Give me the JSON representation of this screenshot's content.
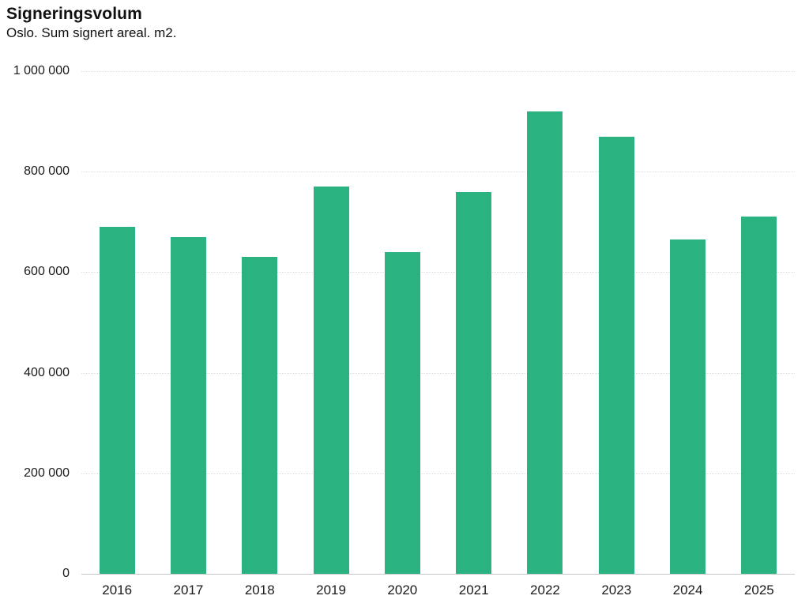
{
  "header": {
    "title": "Signeringsvolum",
    "subtitle": "Oslo. Sum signert areal. m2."
  },
  "chart_data": {
    "type": "bar",
    "title": "Signeringsvolum",
    "subtitle": "Oslo. Sum signert areal. m2.",
    "categories": [
      "2016",
      "2017",
      "2018",
      "2019",
      "2020",
      "2021",
      "2022",
      "2023",
      "2024",
      "2025"
    ],
    "values": [
      690000,
      670000,
      630000,
      770000,
      640000,
      760000,
      920000,
      870000,
      665000,
      710000
    ],
    "xlabel": "",
    "ylabel": "",
    "ylim": [
      0,
      1000000
    ],
    "yticks": [
      {
        "value": 1000000,
        "label": "1 000 000"
      },
      {
        "value": 800000,
        "label": "800 000"
      },
      {
        "value": 600000,
        "label": "600 000"
      },
      {
        "value": 400000,
        "label": "400 000"
      },
      {
        "value": 200000,
        "label": "200 000"
      },
      {
        "value": 0,
        "label": "0"
      }
    ],
    "grid": "horizontal-dotted",
    "legend": "none"
  },
  "colors": {
    "bar": "#2ab381",
    "grid": "#dedede",
    "axis": "#c8c8c8",
    "text": "#1a1a1a",
    "background": "#ffffff"
  }
}
